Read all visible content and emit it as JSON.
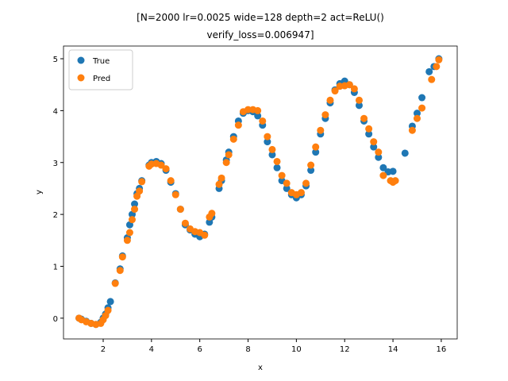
{
  "chart_data": {
    "type": "scatter",
    "title": [
      "[N=2000 lr=0.0025 wide=128 depth=2 act=ReLU()",
      "verify_loss=0.006947]"
    ],
    "xlabel": "x",
    "ylabel": "y",
    "xlim": [
      0.357,
      16.66
    ],
    "ylim": [
      -0.4,
      5.245
    ],
    "xticks": [
      2,
      4,
      6,
      8,
      10,
      12,
      14,
      16
    ],
    "yticks": [
      0,
      1,
      2,
      3,
      4,
      5
    ],
    "grid": false,
    "legend": "upper left",
    "series": [
      {
        "name": "True",
        "color": "#1f77b4",
        "x": [
          1.0,
          1.1,
          1.3,
          1.5,
          1.7,
          1.9,
          2.0,
          2.1,
          2.2,
          2.3,
          2.5,
          2.7,
          2.8,
          3.0,
          3.1,
          3.2,
          3.3,
          3.4,
          3.5,
          3.6,
          3.9,
          4.0,
          4.2,
          4.4,
          4.6,
          4.8,
          5.0,
          5.2,
          5.4,
          5.6,
          5.8,
          6.0,
          6.2,
          6.4,
          6.5,
          6.8,
          6.9,
          7.1,
          7.2,
          7.4,
          7.6,
          7.8,
          8.0,
          8.2,
          8.4,
          8.6,
          8.8,
          9.0,
          9.2,
          9.4,
          9.6,
          9.8,
          10.0,
          10.2,
          10.4,
          10.6,
          10.8,
          11.0,
          11.2,
          11.4,
          11.6,
          11.8,
          12.0,
          12.2,
          12.4,
          12.6,
          12.8,
          13.0,
          13.2,
          13.4,
          13.6,
          13.8,
          14.0,
          14.5,
          14.8,
          15.0,
          15.2,
          15.5,
          15.7,
          15.9
        ],
        "values": [
          0.0,
          -0.02,
          -0.06,
          -0.1,
          -0.12,
          -0.08,
          0.0,
          0.08,
          0.2,
          0.32,
          0.68,
          0.95,
          1.2,
          1.55,
          1.8,
          2.0,
          2.2,
          2.4,
          2.5,
          2.65,
          2.95,
          3.0,
          3.02,
          2.98,
          2.85,
          2.62,
          2.4,
          2.1,
          1.8,
          1.7,
          1.62,
          1.57,
          1.62,
          1.85,
          1.95,
          2.5,
          2.65,
          3.05,
          3.2,
          3.5,
          3.8,
          3.95,
          4.0,
          3.98,
          3.9,
          3.72,
          3.4,
          3.15,
          2.9,
          2.65,
          2.5,
          2.38,
          2.32,
          2.38,
          2.55,
          2.85,
          3.2,
          3.55,
          3.85,
          4.15,
          4.4,
          4.52,
          4.57,
          4.5,
          4.35,
          4.1,
          3.8,
          3.55,
          3.3,
          3.1,
          2.9,
          2.82,
          2.83,
          3.18,
          3.7,
          3.95,
          4.25,
          4.75,
          4.85,
          5.0
        ]
      },
      {
        "name": "Pred",
        "color": "#ff7f0e",
        "x": [
          1.0,
          1.1,
          1.3,
          1.5,
          1.7,
          1.9,
          2.0,
          2.1,
          2.2,
          2.5,
          2.7,
          2.8,
          3.0,
          3.1,
          3.2,
          3.3,
          3.4,
          3.5,
          3.6,
          3.9,
          4.0,
          4.2,
          4.4,
          4.6,
          4.8,
          5.0,
          5.2,
          5.4,
          5.6,
          5.8,
          6.0,
          6.2,
          6.4,
          6.5,
          6.8,
          6.9,
          7.1,
          7.2,
          7.4,
          7.6,
          7.8,
          8.0,
          8.2,
          8.4,
          8.6,
          8.8,
          9.0,
          9.2,
          9.4,
          9.6,
          9.8,
          10.0,
          10.2,
          10.4,
          10.6,
          10.8,
          11.0,
          11.2,
          11.4,
          11.6,
          11.8,
          12.0,
          12.2,
          12.4,
          12.6,
          12.8,
          13.0,
          13.2,
          13.4,
          13.6,
          13.9,
          14.0,
          14.1,
          14.8,
          15.0,
          15.2,
          15.6,
          15.8,
          15.9
        ],
        "values": [
          0.0,
          -0.03,
          -0.07,
          -0.1,
          -0.12,
          -0.1,
          -0.03,
          0.05,
          0.15,
          0.67,
          0.92,
          1.18,
          1.5,
          1.65,
          1.9,
          2.1,
          2.35,
          2.45,
          2.63,
          2.93,
          2.97,
          2.98,
          2.95,
          2.88,
          2.65,
          2.38,
          2.1,
          1.83,
          1.72,
          1.67,
          1.65,
          1.6,
          1.95,
          2.02,
          2.58,
          2.7,
          3.0,
          3.15,
          3.45,
          3.72,
          3.98,
          4.02,
          4.02,
          4.0,
          3.8,
          3.5,
          3.25,
          3.02,
          2.75,
          2.6,
          2.42,
          2.38,
          2.42,
          2.6,
          2.95,
          3.3,
          3.62,
          3.92,
          4.2,
          4.38,
          4.47,
          4.48,
          4.5,
          4.42,
          4.2,
          3.85,
          3.65,
          3.4,
          3.2,
          2.75,
          2.65,
          2.62,
          2.65,
          3.62,
          3.85,
          4.05,
          4.6,
          4.85,
          4.98
        ]
      }
    ]
  }
}
